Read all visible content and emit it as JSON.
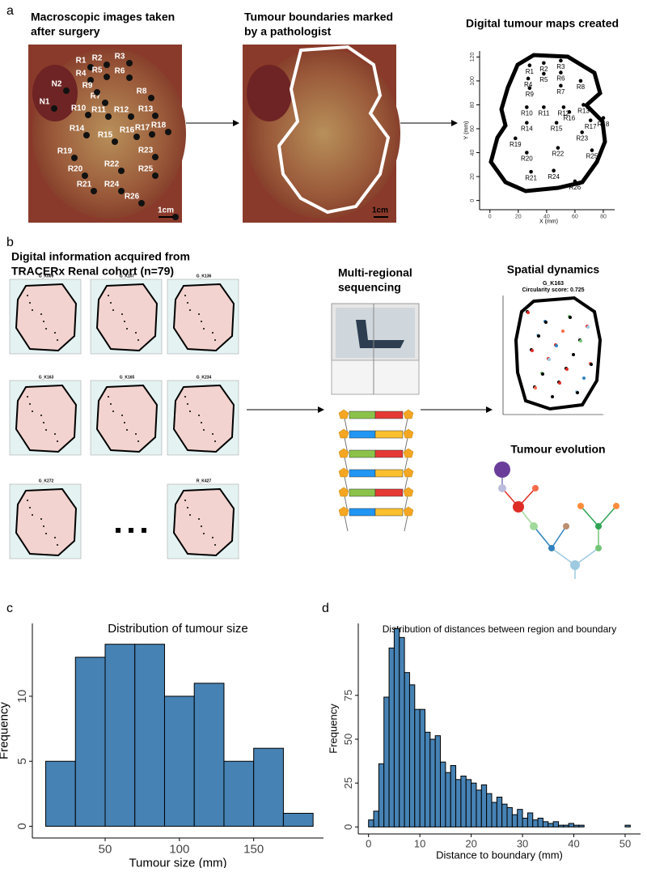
{
  "panel_labels": [
    "a",
    "b",
    "c",
    "d"
  ],
  "panel_a": {
    "captions": [
      [
        "Macroscopic images taken",
        "after surgery"
      ],
      [
        "Tumour boundaries marked",
        "by a pathologist"
      ]
    ],
    "photo_labels": [
      "N1",
      "N2",
      "R1",
      "R2",
      "R3",
      "R4",
      "R5",
      "R6",
      "R7",
      "R8",
      "R9",
      "R10",
      "R11",
      "R12",
      "R13",
      "R14",
      "R15",
      "R16",
      "R17",
      "R18",
      "R19",
      "R20",
      "R21",
      "R22",
      "R23",
      "R24",
      "R25",
      "R26",
      "1cm"
    ],
    "scale_label_2": "1cm"
  },
  "panel_b": {
    "caption": [
      "Digital information acquired from",
      "TRACERx Renal cohort (n=79)"
    ],
    "thumbnail_titles": [
      "G_K009",
      "G_K107",
      "G_K136",
      "G_K163",
      "G_K165",
      "G_K234",
      "G_K272",
      "R_K427"
    ],
    "sequencing_title": [
      "Multi-regional",
      "sequencing"
    ],
    "spatial_title": "Spatial dynamics",
    "spatial_case": "G_K163",
    "spatial_score": "Circularity score: 0.725",
    "evolution_title": "Tumour evolution"
  },
  "chart_data": [
    {
      "type": "scatter",
      "title": "Digital tumour maps created",
      "x_label": "X (mm)",
      "y_label": "Y (mm)",
      "xlim": [
        -5,
        88
      ],
      "ylim": [
        -5,
        125
      ],
      "xticks": [
        0,
        20,
        40,
        60,
        80
      ],
      "yticks": [
        0,
        20,
        40,
        60,
        80,
        100,
        120
      ],
      "color": "#000000",
      "labels": [
        "R1",
        "R2",
        "R3",
        "R4",
        "R5",
        "R6",
        "R7",
        "R8",
        "R9",
        "R10",
        "R11",
        "R12",
        "R13",
        "R14",
        "R15",
        "R16",
        "R17",
        "R18",
        "R19",
        "R20",
        "R21",
        "R22",
        "R23",
        "R24",
        "R25",
        "R26"
      ],
      "x": [
        28,
        38,
        50,
        27,
        38,
        50,
        50,
        64,
        28,
        26,
        38,
        52,
        66,
        26,
        47,
        56,
        71,
        80,
        18,
        26,
        29,
        48,
        65,
        45,
        72,
        60
      ],
      "y": [
        113,
        115,
        117,
        102,
        106,
        107,
        96,
        100,
        94,
        78,
        78,
        78,
        80,
        65,
        65,
        74,
        67,
        69,
        52,
        40,
        24,
        44,
        57,
        25,
        42,
        16
      ]
    },
    {
      "type": "histogram",
      "title": "Distribution of tumour size",
      "x_label": "Tumour size (mm)",
      "y_label": "Frequency",
      "bins": [
        10,
        30,
        50,
        70,
        90,
        110,
        130,
        150,
        170,
        190
      ],
      "values": [
        5,
        13,
        14,
        14,
        10,
        11,
        5,
        6,
        1
      ],
      "color": "#4682b4",
      "xlim": [
        1,
        197
      ],
      "ylim": [
        -0.9,
        15.6
      ],
      "xticks": [
        50,
        100,
        150
      ],
      "yticks": [
        0,
        5,
        10
      ]
    },
    {
      "type": "histogram",
      "title": "Distribution of distances between region and boundary",
      "x_label": "Distance to boundary (mm)",
      "y_label": "Frequency",
      "bins": [
        0,
        1,
        2,
        3,
        4,
        5,
        6,
        7,
        8,
        9,
        10,
        11,
        12,
        13,
        14,
        15,
        16,
        17,
        18,
        19,
        20,
        21,
        22,
        23,
        24,
        25,
        26,
        27,
        28,
        29,
        30,
        31,
        32,
        33,
        34,
        35,
        36,
        37,
        38,
        39,
        40,
        41,
        42,
        43,
        44,
        45,
        46,
        47,
        48,
        49,
        50,
        51
      ],
      "values": [
        4,
        9,
        36,
        74,
        102,
        113,
        108,
        88,
        81,
        67,
        67,
        54,
        50,
        52,
        37,
        31,
        35,
        27,
        29,
        27,
        25,
        21,
        24,
        19,
        14,
        17,
        13,
        11,
        7,
        10,
        5,
        8,
        4,
        5,
        3,
        2,
        3,
        1,
        1,
        2,
        1,
        1,
        0,
        0,
        0,
        0,
        0,
        0,
        0,
        0,
        1
      ],
      "color": "#4682b4",
      "xlim": [
        -2,
        53
      ],
      "ylim": [
        -4,
        116
      ],
      "xticks": [
        0,
        10,
        20,
        30,
        40,
        50
      ],
      "yticks": [
        0,
        25,
        50,
        75
      ]
    }
  ]
}
